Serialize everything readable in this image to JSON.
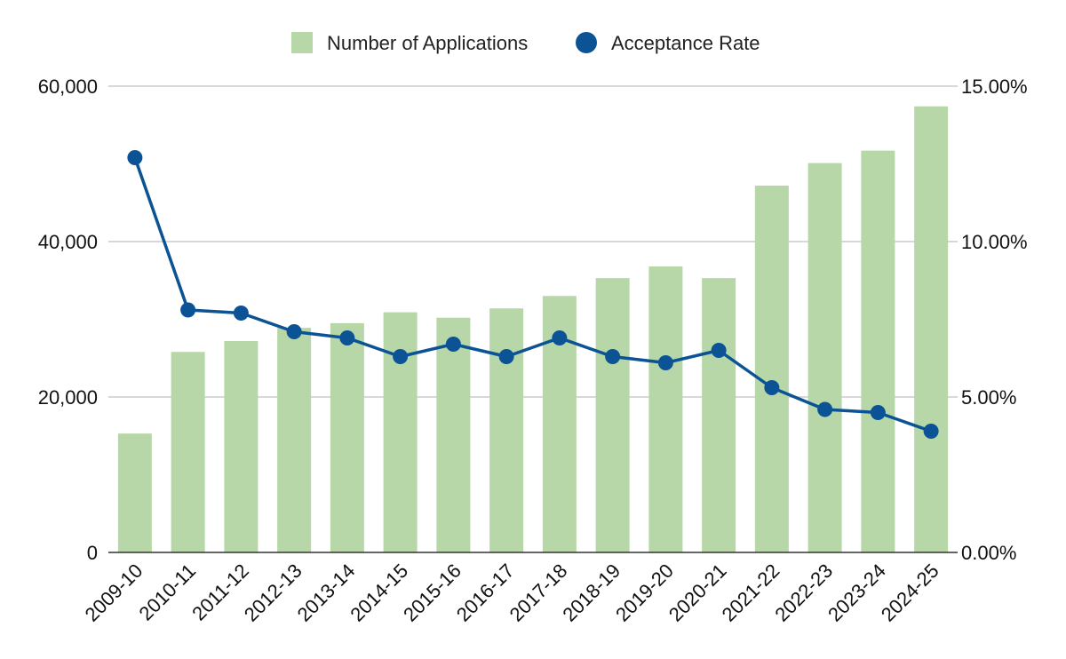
{
  "chart_data": {
    "type": "bar",
    "categories": [
      "2009-10",
      "2010-11",
      "2011-12",
      "2012-13",
      "2013-14",
      "2014-15",
      "2015-16",
      "2016-17",
      "2017-18",
      "2018-19",
      "2019-20",
      "2020-21",
      "2021-22",
      "2022-23",
      "2023-24",
      "2024-25"
    ],
    "series": [
      {
        "name": "Number of Applications",
        "type": "bar",
        "axis": "left",
        "color": "#b7d7a8",
        "values": [
          15300,
          25800,
          27200,
          28900,
          29500,
          30900,
          30200,
          31400,
          33000,
          35300,
          36800,
          35300,
          47200,
          50100,
          51700,
          57400
        ]
      },
      {
        "name": "Acceptance Rate",
        "type": "line",
        "axis": "right",
        "color": "#0b5394",
        "values": [
          12.7,
          7.8,
          7.7,
          7.1,
          6.9,
          6.3,
          6.7,
          6.3,
          6.9,
          6.3,
          6.1,
          6.5,
          5.3,
          4.6,
          4.5,
          3.9
        ]
      }
    ],
    "y_left": {
      "ylim": [
        0,
        60000
      ],
      "ticks": [
        0,
        20000,
        40000,
        60000
      ],
      "tick_labels": [
        "0",
        "20,000",
        "40,000",
        "60,000"
      ]
    },
    "y_right": {
      "ylim": [
        0,
        15
      ],
      "ticks": [
        0,
        5,
        10,
        15
      ],
      "tick_labels": [
        "0.00%",
        "5.00%",
        "10.00%",
        "15.00%"
      ]
    },
    "gridlines": true,
    "legend_position": "top-center"
  }
}
